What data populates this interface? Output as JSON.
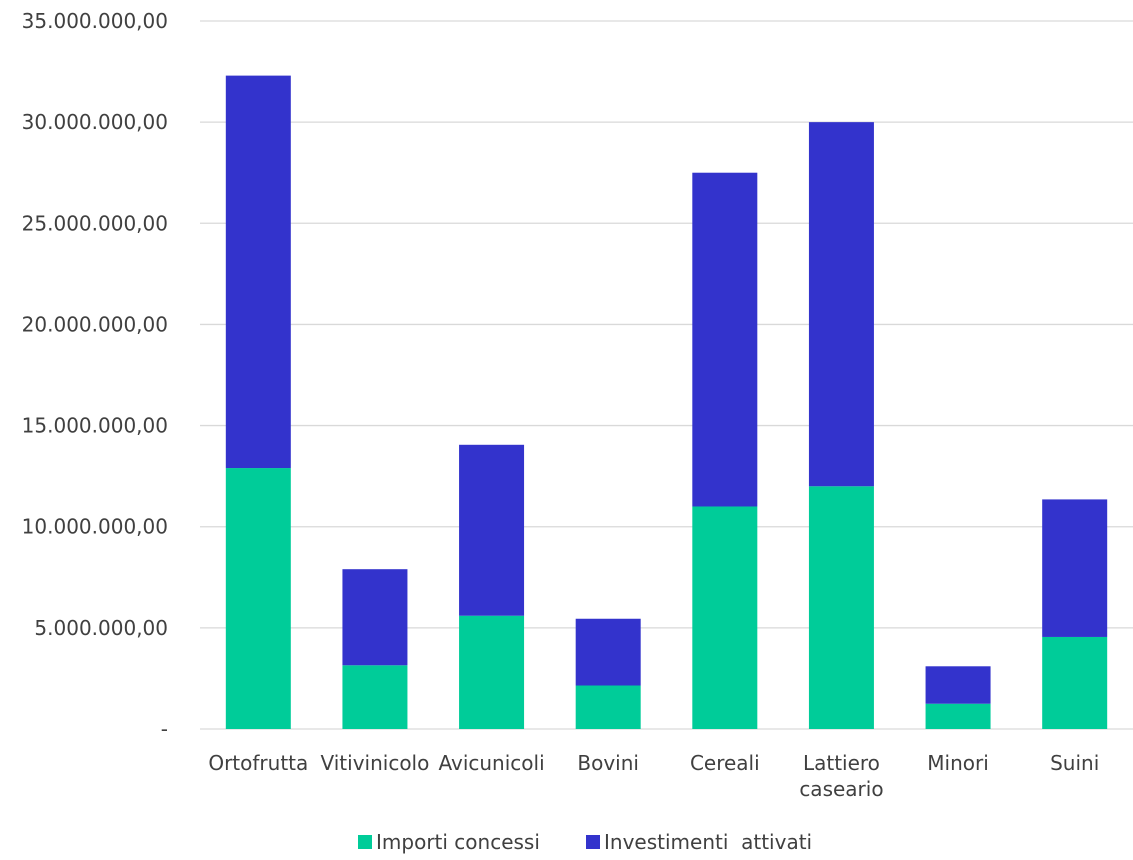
{
  "chart_data": {
    "type": "bar",
    "stacked": true,
    "title": "",
    "xlabel": "",
    "ylabel": "",
    "ylim": [
      0,
      35000000
    ],
    "ytick_step": 5000000,
    "ytick_labels": [
      "-",
      "5.000.000,00",
      "10.000.000,00",
      "15.000.000,00",
      "20.000.000,00",
      "25.000.000,00",
      "30.000.000,00",
      "35.000.000,00"
    ],
    "grid": true,
    "legend_position": "bottom",
    "categories": [
      [
        "Ortofrutta"
      ],
      [
        "Vitivinicolo"
      ],
      [
        "Avicunicoli"
      ],
      [
        "Bovini"
      ],
      [
        "Cereali"
      ],
      [
        "Lattiero",
        "caseario"
      ],
      [
        "Minori"
      ],
      [
        "Suini"
      ]
    ],
    "series": [
      {
        "name": "Importi concessi",
        "color": "#00cc99",
        "values": [
          12900000,
          3150000,
          5600000,
          2150000,
          11000000,
          12000000,
          1250000,
          4550000
        ]
      },
      {
        "name": "Investimenti  attivati",
        "color": "#3333cc",
        "values": [
          19400000,
          4750000,
          8450000,
          3300000,
          16500000,
          18000000,
          1850000,
          6800000
        ]
      }
    ]
  }
}
